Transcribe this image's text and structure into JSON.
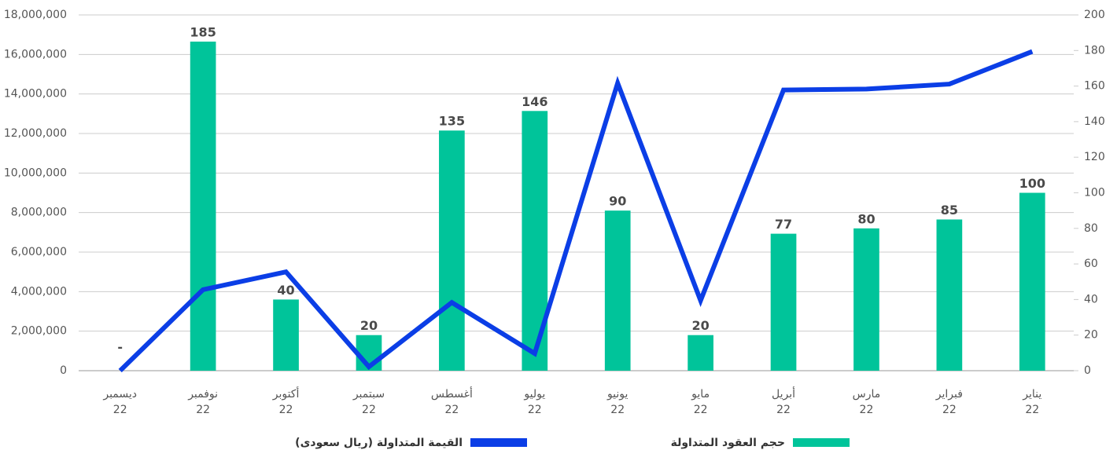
{
  "chart_data": {
    "type": "combo",
    "categories": [
      [
        "ديسمبر",
        "22"
      ],
      [
        "نوفمبر",
        "22"
      ],
      [
        "أكتوبر",
        "22"
      ],
      [
        "سبتمبر",
        "22"
      ],
      [
        "أغسطس",
        "22"
      ],
      [
        "يوليو",
        "22"
      ],
      [
        "يونيو",
        "22"
      ],
      [
        "مايو",
        "22"
      ],
      [
        "أبريل",
        "22"
      ],
      [
        "مارس",
        "22"
      ],
      [
        "فبراير",
        "22"
      ],
      [
        "يناير",
        "22"
      ]
    ],
    "series": [
      {
        "name": "حجم العقود المتداولة",
        "type": "bar",
        "axis": "y2",
        "color": "#00c49a",
        "values": [
          0,
          185,
          40,
          20,
          135,
          146,
          90,
          20,
          77,
          80,
          85,
          100
        ],
        "value_labels": [
          "-",
          "185",
          "40",
          "20",
          "135",
          "146",
          "90",
          "20",
          "77",
          "80",
          "85",
          "100"
        ]
      },
      {
        "name": "القيمة المتداولة (ريال سعودى)",
        "type": "line",
        "axis": "y",
        "color": "#0b3ee6",
        "values": [
          0,
          4100000,
          5000000,
          200000,
          3450000,
          870000,
          14550000,
          3550000,
          14200000,
          14250000,
          14500000,
          16150000
        ]
      }
    ],
    "ylim": [
      0,
      18000000
    ],
    "yticks": [
      0,
      {
        "value": 2000000,
        "label": "2,000,000"
      },
      {
        "value": 4000000,
        "label": "4,000,000"
      },
      {
        "value": 6000000,
        "label": "6,000,000"
      },
      {
        "value": 8000000,
        "label": "8,000,000"
      },
      {
        "value": 10000000,
        "label": "10,000,000"
      },
      {
        "value": 12000000,
        "label": "12,000,000"
      },
      {
        "value": 14000000,
        "label": "14,000,000"
      },
      {
        "value": 16000000,
        "label": "16,000,000"
      },
      {
        "value": 18000000,
        "label": "18,000,000"
      }
    ],
    "y2lim": [
      0,
      200
    ],
    "y2ticks": [
      0,
      20,
      40,
      60,
      80,
      100,
      120,
      140,
      160,
      180,
      200
    ],
    "grid": true
  }
}
